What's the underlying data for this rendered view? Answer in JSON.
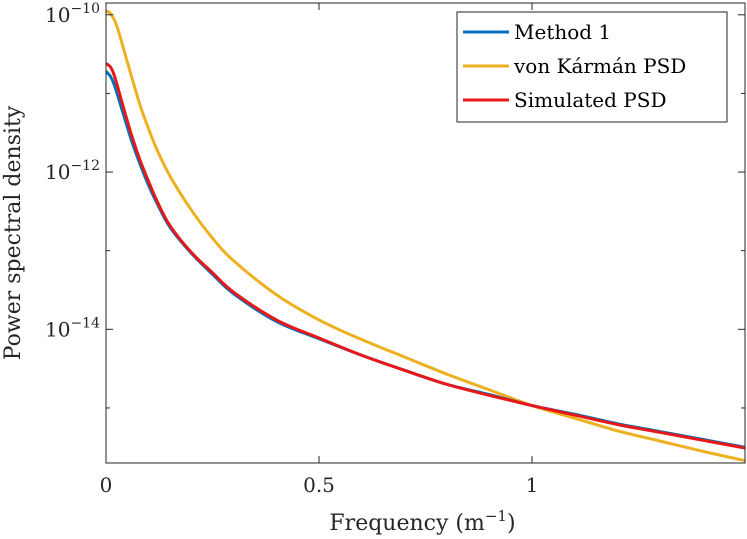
{
  "chart_data": {
    "type": "line",
    "title": "",
    "xlabel": "Frequency (m",
    "xlabel_sup": "−1",
    "xlabel_close": ")",
    "ylabel": "Power spectral density",
    "xlim": [
      0,
      1.5
    ],
    "ylim_log10": [
      -15.7,
      -9.85
    ],
    "y_scale": "log",
    "grid": false,
    "legend_position": "top-right",
    "x_ticks": [
      {
        "value": 0,
        "label": "0"
      },
      {
        "value": 0.5,
        "label": "0.5"
      },
      {
        "value": 1,
        "label": "1"
      }
    ],
    "y_ticks": [
      {
        "exp": -10,
        "base": "10",
        "sup": "−10"
      },
      {
        "exp": -12,
        "base": "10",
        "sup": "−12"
      },
      {
        "exp": -14,
        "base": "10",
        "sup": "−14"
      }
    ],
    "series": [
      {
        "name": "Method 1",
        "color": "#0072BD",
        "x": [
          0,
          0.01,
          0.02,
          0.04,
          0.06,
          0.08,
          0.1,
          0.12,
          0.15,
          0.2,
          0.25,
          0.3,
          0.4,
          0.5,
          0.6,
          0.7,
          0.8,
          0.9,
          1.0,
          1.1,
          1.2,
          1.3,
          1.4,
          1.5
        ],
        "log10_y": [
          -10.72,
          -10.78,
          -10.9,
          -11.25,
          -11.6,
          -11.9,
          -12.17,
          -12.4,
          -12.7,
          -13.03,
          -13.3,
          -13.55,
          -13.9,
          -14.12,
          -14.33,
          -14.52,
          -14.7,
          -14.83,
          -14.97,
          -15.08,
          -15.2,
          -15.3,
          -15.4,
          -15.5
        ]
      },
      {
        "name": "von Kármán PSD",
        "color": "#EDB120",
        "x": [
          0,
          0.01,
          0.02,
          0.03,
          0.05,
          0.08,
          0.1,
          0.12,
          0.15,
          0.2,
          0.25,
          0.3,
          0.4,
          0.5,
          0.6,
          0.7,
          0.8,
          0.9,
          1.0,
          1.1,
          1.2,
          1.3,
          1.4,
          1.5
        ],
        "log10_y": [
          -9.95,
          -9.98,
          -10.07,
          -10.22,
          -10.6,
          -11.15,
          -11.45,
          -11.72,
          -12.05,
          -12.48,
          -12.84,
          -13.13,
          -13.56,
          -13.88,
          -14.13,
          -14.35,
          -14.57,
          -14.77,
          -14.97,
          -15.13,
          -15.29,
          -15.42,
          -15.55,
          -15.67
        ]
      },
      {
        "name": "Simulated PSD",
        "color": "#E81818",
        "x": [
          0,
          0.01,
          0.02,
          0.04,
          0.06,
          0.08,
          0.1,
          0.12,
          0.15,
          0.2,
          0.25,
          0.3,
          0.4,
          0.5,
          0.6,
          0.7,
          0.8,
          0.9,
          1.0,
          1.1,
          1.2,
          1.3,
          1.4,
          1.5
        ],
        "log10_y": [
          -10.62,
          -10.66,
          -10.78,
          -11.16,
          -11.53,
          -11.85,
          -12.12,
          -12.37,
          -12.68,
          -13.02,
          -13.28,
          -13.53,
          -13.88,
          -14.11,
          -14.33,
          -14.52,
          -14.7,
          -14.84,
          -14.97,
          -15.09,
          -15.21,
          -15.31,
          -15.41,
          -15.51
        ]
      }
    ]
  }
}
